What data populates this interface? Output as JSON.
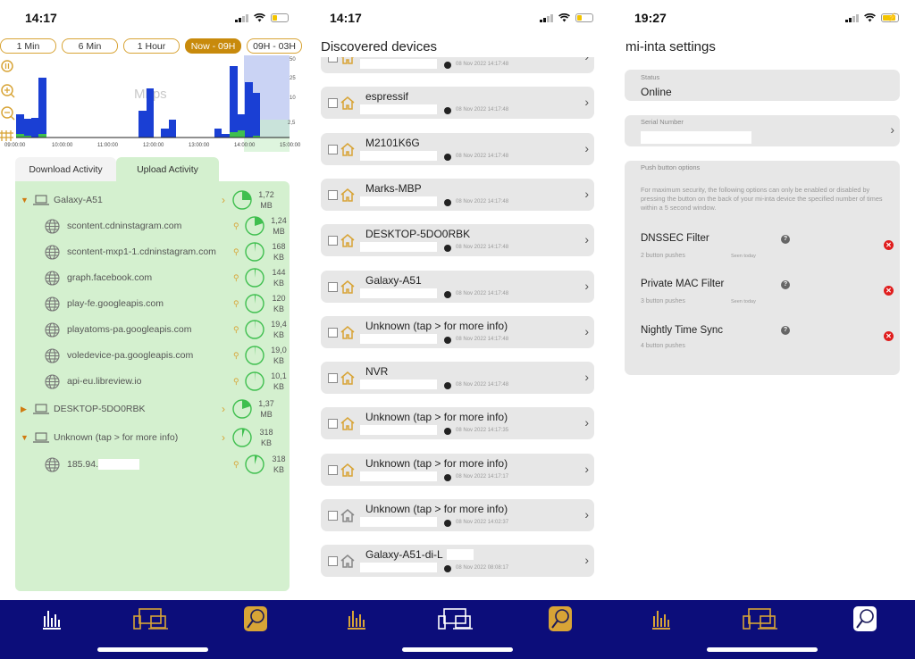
{
  "screens": [
    {
      "status": {
        "time": "14:17"
      },
      "range_buttons": [
        {
          "label": "1 Min",
          "active": false
        },
        {
          "label": "6 Min",
          "active": false
        },
        {
          "label": "1 Hour",
          "active": false
        },
        {
          "label": "Now - 09H",
          "active": true
        },
        {
          "label": "09H - 03H",
          "active": false
        }
      ],
      "chart_overlay_label": "Mbps",
      "activity_tabs": [
        {
          "label": "Download Activity",
          "active": false
        },
        {
          "label": "Upload Activity",
          "active": true
        }
      ],
      "tree": [
        {
          "type": "device",
          "name": "Galaxy-A51",
          "expanded": true,
          "size_value": "1,72",
          "size_unit": "MB",
          "pie_pct": 25
        },
        {
          "type": "domain",
          "name": "scontent.cdninstagram.com",
          "size_value": "1,24",
          "size_unit": "MB",
          "pie_pct": 20
        },
        {
          "type": "domain",
          "name": "scontent-mxp1-1.cdninstagram.com",
          "size_value": "168",
          "size_unit": "KB",
          "pie_pct": 2
        },
        {
          "type": "domain",
          "name": "graph.facebook.com",
          "size_value": "144",
          "size_unit": "KB",
          "pie_pct": 2
        },
        {
          "type": "domain",
          "name": "play-fe.googleapis.com",
          "size_value": "120",
          "size_unit": "KB",
          "pie_pct": 2
        },
        {
          "type": "domain",
          "name": "playatoms-pa.googleapis.com",
          "size_value": "19,4",
          "size_unit": "KB",
          "pie_pct": 1
        },
        {
          "type": "domain",
          "name": "voledevice-pa.googleapis.com",
          "size_value": "19,0",
          "size_unit": "KB",
          "pie_pct": 1
        },
        {
          "type": "domain",
          "name": "api-eu.libreview.io",
          "size_value": "10,1",
          "size_unit": "KB",
          "pie_pct": 1
        },
        {
          "type": "device",
          "name": "DESKTOP-5DO0RBK",
          "expanded": false,
          "size_value": "1,37",
          "size_unit": "MB",
          "pie_pct": 20
        },
        {
          "type": "device",
          "name": "Unknown (tap > for more info)",
          "expanded": true,
          "size_value": "318",
          "size_unit": "KB",
          "pie_pct": 5
        },
        {
          "type": "domain",
          "name": "185.94.",
          "size_value": "318",
          "size_unit": "KB",
          "pie_pct": 5
        }
      ]
    },
    {
      "status": {
        "time": "14:17"
      },
      "title": "Discovered devices",
      "devices": [
        {
          "name": "",
          "timestamp": "08 Nov 2022 14:17:48",
          "active": true
        },
        {
          "name": "espressif",
          "timestamp": "08 Nov 2022 14:17:48",
          "active": true
        },
        {
          "name": "M2101K6G",
          "timestamp": "08 Nov 2022 14:17:48",
          "active": true
        },
        {
          "name": "Marks-MBP",
          "timestamp": "08 Nov 2022 14:17:48",
          "active": true
        },
        {
          "name": "DESKTOP-5DO0RBK",
          "timestamp": "08 Nov 2022 14:17:48",
          "active": true
        },
        {
          "name": "Galaxy-A51",
          "timestamp": "08 Nov 2022 14:17:48",
          "active": true
        },
        {
          "name": "Unknown (tap > for more info)",
          "timestamp": "08 Nov 2022 14:17:48",
          "active": true
        },
        {
          "name": "NVR",
          "timestamp": "08 Nov 2022 14:17:48",
          "active": true
        },
        {
          "name": "Unknown (tap > for more info)",
          "timestamp": "08 Nov 2022 14:17:35",
          "active": true
        },
        {
          "name": "Unknown (tap > for more info)",
          "timestamp": "08 Nov 2022 14:17:17",
          "active": true
        },
        {
          "name": "Unknown (tap > for more info)",
          "timestamp": "08 Nov 2022 14:02:37",
          "active": false
        },
        {
          "name": "Galaxy-A51-di-L",
          "timestamp": "08 Nov 2022 08:08:17",
          "active": false
        }
      ]
    },
    {
      "status": {
        "time": "19:27"
      },
      "title": "mi-inta settings",
      "status_card": {
        "label": "Status",
        "value": "Online"
      },
      "serial_card": {
        "label": "Serial Number"
      },
      "push": {
        "label": "Push button options",
        "description": "For maximum security, the following options can only be enabled or disabled by pressing the button on the back of your mi-inta device the specified number of times within a 5 second window.",
        "options": [
          {
            "name": "DNSSEC Filter",
            "pushes": "2 button pushes",
            "seen": "Seen today"
          },
          {
            "name": "Private MAC Filter",
            "pushes": "3 button pushes",
            "seen": "Seen today"
          },
          {
            "name": "Nightly Time Sync",
            "pushes": "4 button pushes",
            "seen": ""
          }
        ]
      }
    }
  ],
  "chart_data": {
    "type": "bar",
    "title": "",
    "ylabel": "Mbps",
    "y_scale": "log",
    "y_ticks": [
      "2,5",
      "10",
      "25",
      "50"
    ],
    "x_ticks": [
      "09:00:00",
      "10:00:00",
      "11:00:00",
      "12:00:00",
      "13:00:00",
      "14:00:00",
      "15:00:00"
    ],
    "series": [
      {
        "name": "Download",
        "color": "#1a3fd4",
        "x": [
          "09:00",
          "09:10",
          "09:20",
          "09:30",
          "11:50",
          "12:00",
          "12:20",
          "12:30",
          "13:30",
          "13:40",
          "13:50",
          "14:00",
          "14:10",
          "14:20"
        ],
        "values": [
          2.2,
          1.9,
          2.0,
          20,
          5,
          16,
          1.3,
          2.6,
          1.4,
          0.4,
          40,
          5,
          24,
          14
        ]
      },
      {
        "name": "Upload",
        "color": "#3fbf4f",
        "x": [
          "09:00",
          "09:10",
          "09:20",
          "09:30",
          "13:40",
          "13:50",
          "14:00",
          "14:10"
        ],
        "values": [
          0.5,
          0.4,
          0.3,
          0.5,
          0.3,
          0.7,
          0.9,
          0.4
        ]
      }
    ],
    "highlight_range": [
      "14:00:00",
      "15:00:00"
    ],
    "legend": []
  },
  "tabbar": {
    "items": [
      "stats",
      "devices",
      "settings"
    ]
  }
}
